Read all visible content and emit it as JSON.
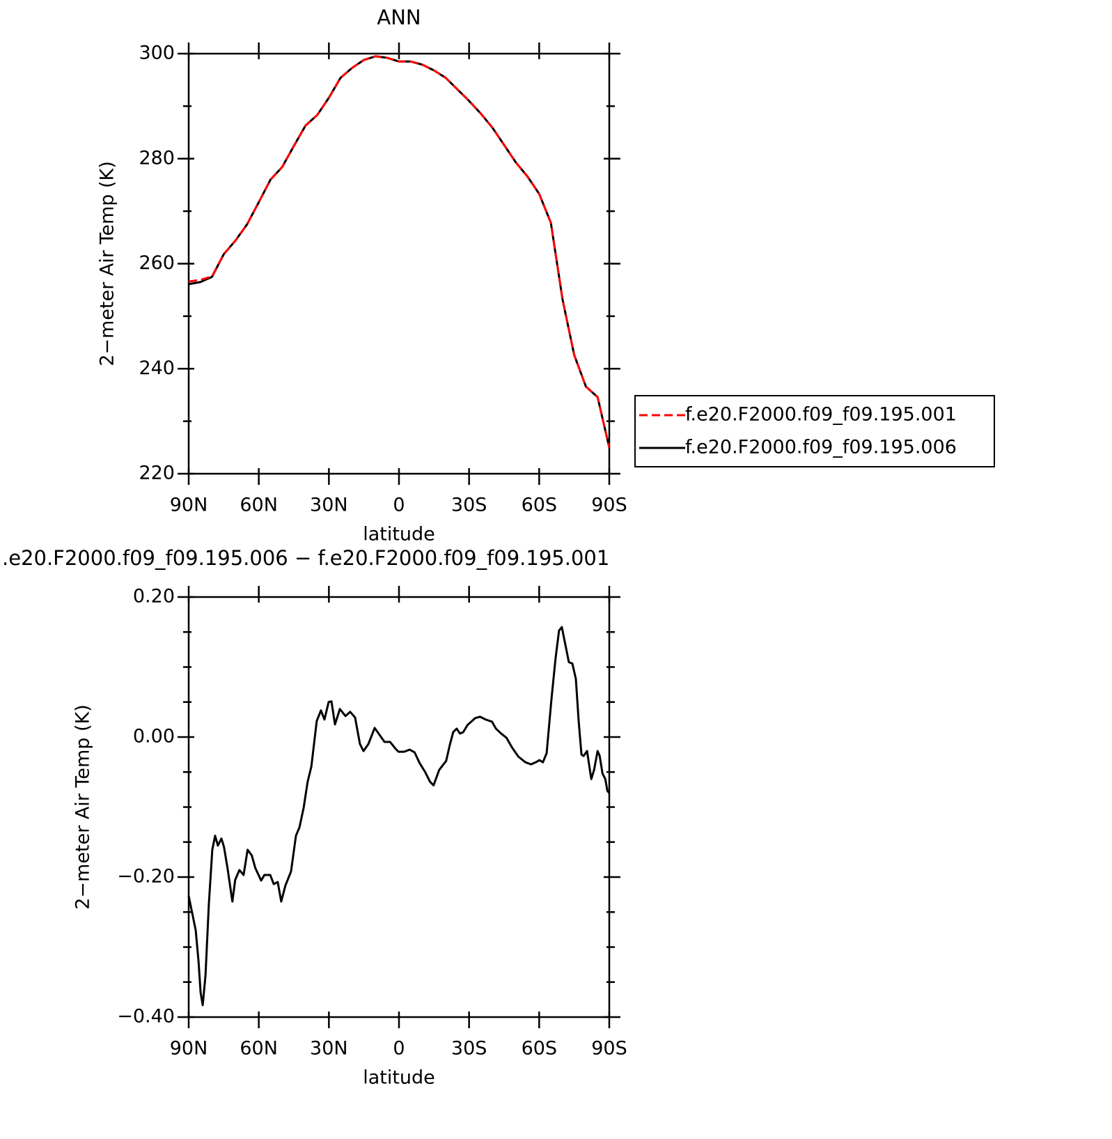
{
  "chart_data": [
    {
      "type": "line",
      "title": "ANN",
      "xlabel": "latitude",
      "ylabel": "2−meter Air Temp (K)",
      "x": [
        90,
        85,
        80,
        75,
        70,
        65,
        60,
        55,
        50,
        45,
        40,
        35,
        30,
        25,
        20,
        15,
        10,
        5,
        0,
        -5,
        -10,
        -15,
        -20,
        -25,
        -30,
        -35,
        -40,
        -45,
        -50,
        -55,
        -60,
        -65,
        -70,
        -75,
        -80,
        -85,
        -90
      ],
      "series": [
        {
          "name": "f.e20.F2000.f09_f09.195.006",
          "color": "#000000",
          "dash": false,
          "values": [
            256.1,
            256.5,
            257.5,
            261.8,
            264.4,
            267.5,
            271.7,
            276,
            278.4,
            282.4,
            286.3,
            288.3,
            291.6,
            295.4,
            297.3,
            298.8,
            299.5,
            299.2,
            298.5,
            298.5,
            297.9,
            296.8,
            295.4,
            293.2,
            291,
            288.6,
            285.9,
            282.6,
            279.3,
            276.6,
            273.3,
            267.8,
            253.2,
            242.6,
            236.6,
            234.6,
            225
          ]
        },
        {
          "name": "f.e20.F2000.f09_f09.195.001",
          "color": "#ff0000",
          "dash": true,
          "values": [
            256.6,
            256.9,
            257.6,
            261.8,
            264.4,
            267.5,
            271.7,
            276,
            278.4,
            282.4,
            286.3,
            288.3,
            291.6,
            295.4,
            297.3,
            298.8,
            299.5,
            299.2,
            298.5,
            298.5,
            297.9,
            296.8,
            295.4,
            293.2,
            291,
            288.6,
            285.9,
            282.6,
            279.3,
            276.6,
            273.3,
            267.8,
            253.2,
            242.6,
            236.6,
            234.6,
            225
          ]
        }
      ],
      "xlim": [
        90,
        -90
      ],
      "xticks": [
        {
          "value": 90,
          "label": "90N"
        },
        {
          "value": 60,
          "label": "60N"
        },
        {
          "value": 30,
          "label": "30N"
        },
        0,
        {
          "value": -30,
          "label": "30S"
        },
        {
          "value": -60,
          "label": "60S"
        },
        {
          "value": -90,
          "label": "90S"
        }
      ],
      "ylim": [
        220,
        300
      ],
      "yticks": [
        220,
        240,
        260,
        280,
        300
      ],
      "yminorticks": [
        230,
        250,
        270,
        290
      ],
      "legend": "right"
    },
    {
      "type": "line",
      "title": ".e20.F2000.f09_f09.195.006 − f.e20.F2000.f09_f09.195.001",
      "xlabel": "latitude",
      "ylabel": "2−meter Air Temp (K)",
      "x": [
        90,
        87.0,
        85.8,
        84.9,
        84.0,
        82.8,
        81.4,
        79.9,
        78.7,
        77.5,
        76.0,
        74.9,
        73.4,
        71.3,
        70.1,
        68.3,
        66.5,
        64.8,
        63.0,
        61.5,
        59.0,
        57.6,
        55.1,
        53.6,
        51.9,
        50.4,
        48.6,
        46.2,
        44.1,
        42.6,
        40.8,
        39.1,
        37.5,
        35.2,
        33.4,
        31.9,
        30.1,
        28.9,
        27.4,
        25.3,
        22.9,
        20.9,
        18.8,
        16.7,
        15.2,
        13.1,
        10.4,
        8.3,
        6.2,
        3.8,
        1.4,
        0.2,
        -2.2,
        -4.6,
        -6.7,
        -8.8,
        -11.2,
        -13.3,
        -14.8,
        -17.2,
        -20.2,
        -21.7,
        -23.2,
        -24.7,
        -26.1,
        -27.5,
        -29.3,
        -32.6,
        -34.7,
        -37.1,
        -39.8,
        -41.5,
        -43.7,
        -46.0,
        -48.4,
        -51.1,
        -54.1,
        -56.5,
        -58.6,
        -60.1,
        -61.6,
        -63.2,
        -65.2,
        -67.0,
        -68.5,
        -69.7,
        -71.2,
        -72.7,
        -74.2,
        -75.7,
        -76.9,
        -78.1,
        -79.0,
        -80.5,
        -82.3,
        -83.5,
        -85.0,
        -85.9,
        -87.1,
        -88.3,
        -89.2,
        -90
      ],
      "series": [
        {
          "color": "#000000",
          "dash": false,
          "values": [
            -0.227,
            -0.276,
            -0.32,
            -0.365,
            -0.383,
            -0.34,
            -0.24,
            -0.161,
            -0.141,
            -0.155,
            -0.145,
            -0.157,
            -0.187,
            -0.235,
            -0.204,
            -0.19,
            -0.197,
            -0.161,
            -0.169,
            -0.187,
            -0.205,
            -0.197,
            -0.197,
            -0.21,
            -0.207,
            -0.235,
            -0.212,
            -0.192,
            -0.141,
            -0.129,
            -0.101,
            -0.064,
            -0.042,
            0.023,
            0.038,
            0.025,
            0.05,
            0.051,
            0.018,
            0.04,
            0.03,
            0.036,
            0.028,
            -0.01,
            -0.02,
            -0.01,
            0.013,
            0.003,
            -0.007,
            -0.007,
            -0.017,
            -0.021,
            -0.021,
            -0.018,
            -0.022,
            -0.037,
            -0.05,
            -0.064,
            -0.069,
            -0.047,
            -0.034,
            -0.012,
            0.007,
            0.012,
            0.005,
            0.007,
            0.017,
            0.027,
            0.029,
            0.025,
            0.022,
            0.012,
            0.005,
            -0.001,
            -0.015,
            -0.028,
            -0.036,
            -0.039,
            -0.036,
            -0.033,
            -0.036,
            -0.023,
            0.052,
            0.112,
            0.152,
            0.157,
            0.132,
            0.107,
            0.105,
            0.083,
            0.023,
            -0.025,
            -0.027,
            -0.02,
            -0.06,
            -0.047,
            -0.02,
            -0.027,
            -0.052,
            -0.06,
            -0.077,
            -0.08
          ]
        }
      ],
      "xlim": [
        90,
        -90
      ],
      "xticks": [
        {
          "value": 90,
          "label": "90N"
        },
        {
          "value": 60,
          "label": "60N"
        },
        {
          "value": 30,
          "label": "30N"
        },
        0,
        {
          "value": -30,
          "label": "30S"
        },
        {
          "value": -60,
          "label": "60S"
        },
        {
          "value": -90,
          "label": "90S"
        }
      ],
      "ylim": [
        -0.4,
        0.2
      ],
      "yticks": [
        {
          "value": -0.4,
          "label": "−0.40"
        },
        {
          "value": -0.2,
          "label": "−0.20"
        },
        {
          "value": 0,
          "label": "0.00"
        },
        {
          "value": 0.2,
          "label": "0.20"
        }
      ],
      "yminorticks": [
        -0.35,
        -0.3,
        -0.25,
        -0.15,
        -0.1,
        -0.05,
        0.05,
        0.1,
        0.15
      ]
    }
  ]
}
